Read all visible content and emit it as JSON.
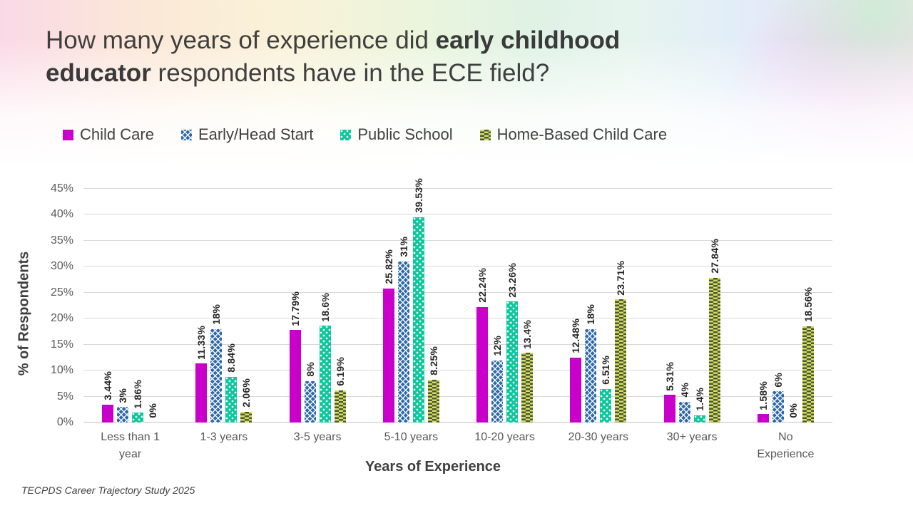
{
  "slide": {
    "title": {
      "line1_pre": "How many years of experience did ",
      "line1_bold": "early childhood",
      "line2_bold": "educator",
      "line2_post": " respondents have in the ECE field?"
    },
    "footer": "TECPDS Career Trajectory Study 2025"
  },
  "chart_data": {
    "type": "bar",
    "title": "How many years of experience did early childhood educator respondents have in the ECE field?",
    "xlabel": "Years of Experience",
    "ylabel": "% of Respondents",
    "ylim": [
      0,
      45
    ],
    "ytick_step": 5,
    "ytick_labels": [
      "0%",
      "5%",
      "10%",
      "15%",
      "20%",
      "25%",
      "30%",
      "35%",
      "40%",
      "45%"
    ],
    "grid": true,
    "legend_position": "top",
    "categories": [
      [
        "Less than 1",
        "year"
      ],
      [
        "1-3 years"
      ],
      [
        "3-5 years"
      ],
      [
        "5-10 years"
      ],
      [
        "10-20 years"
      ],
      [
        "20-30 years"
      ],
      [
        "30+ years"
      ],
      [
        "No",
        "Experience"
      ]
    ],
    "series": [
      {
        "name": "Child Care",
        "color": "#c900c9",
        "pattern": "solid",
        "values": [
          3.44,
          11.33,
          17.79,
          25.82,
          22.24,
          12.48,
          5.31,
          1.58
        ],
        "labels": [
          "3.44%",
          "11.33%",
          "17.79%",
          "25.82%",
          "22.24%",
          "12.48%",
          "5.31%",
          "1.58%"
        ]
      },
      {
        "name": "Early/Head Start",
        "color": "#2e69a8",
        "pattern": "lattice",
        "values": [
          3,
          18,
          8,
          31,
          12,
          18,
          4,
          6
        ],
        "labels": [
          "3%",
          "18%",
          "8%",
          "31%",
          "12%",
          "18%",
          "4%",
          "6%"
        ]
      },
      {
        "name": "Public School",
        "color": "#0dc69b",
        "pattern": "dots",
        "values": [
          1.86,
          8.84,
          18.6,
          39.53,
          23.26,
          6.51,
          1.4,
          0
        ],
        "labels": [
          "1.86%",
          "8.84%",
          "18.6%",
          "39.53%",
          "23.26%",
          "6.51%",
          "1.4%",
          "0%"
        ]
      },
      {
        "name": "Home-Based Child Care",
        "color": "#cde063",
        "pattern": "dashes",
        "values": [
          0,
          2.06,
          6.19,
          8.25,
          13.4,
          23.71,
          27.84,
          18.56
        ],
        "labels": [
          "0%",
          "2.06%",
          "6.19%",
          "8.25%",
          "13.4%",
          "23.71%",
          "27.84%",
          "18.56%"
        ]
      }
    ]
  }
}
